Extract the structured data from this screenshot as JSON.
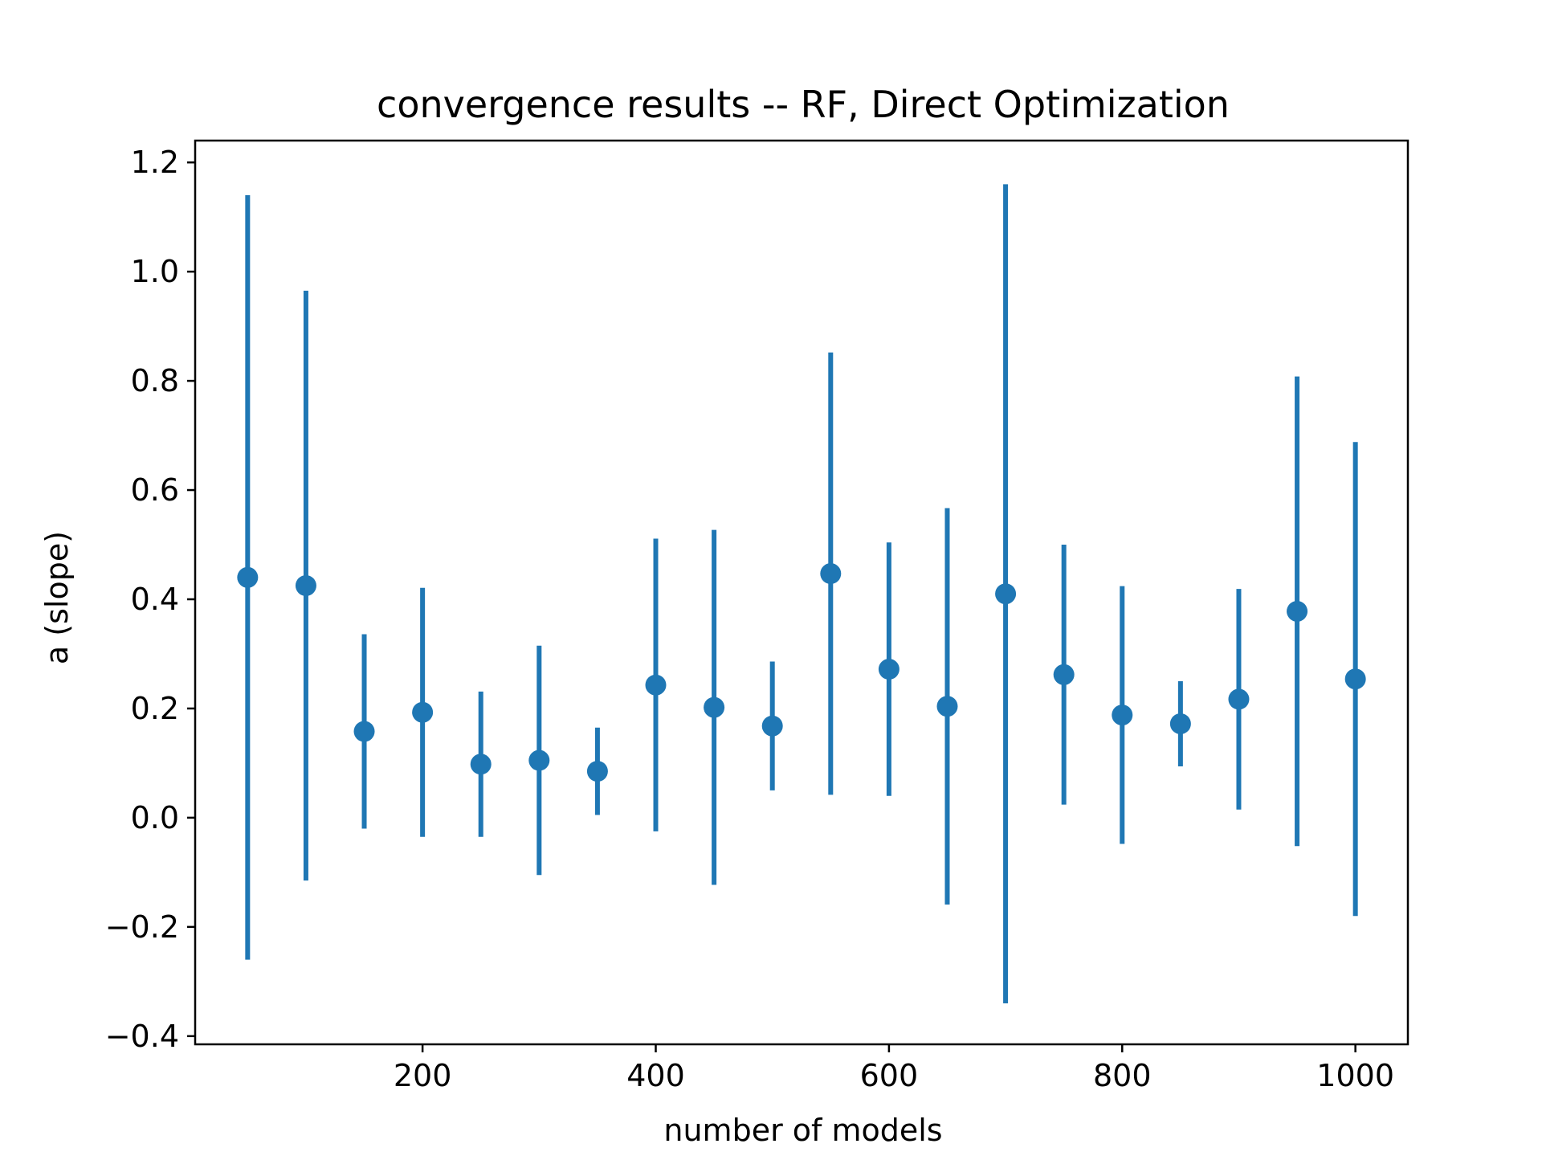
{
  "chart_data": {
    "type": "scatter",
    "title": "convergence results -- RF, Direct Optimization",
    "xlabel": "number of models",
    "ylabel": "a (slope)",
    "xlim": [
      5,
      1045
    ],
    "ylim": [
      -0.415,
      1.24
    ],
    "x_ticks": [
      200,
      400,
      600,
      800,
      1000
    ],
    "x_tick_labels": [
      "200",
      "400",
      "600",
      "800",
      "1000"
    ],
    "y_ticks": [
      -0.4,
      -0.2,
      0.0,
      0.2,
      0.4,
      0.6,
      0.8,
      1.0,
      1.2
    ],
    "y_tick_labels": [
      "−0.4",
      "−0.2",
      "0.0",
      "0.2",
      "0.4",
      "0.6",
      "0.8",
      "1.0",
      "1.2"
    ],
    "grid": false,
    "series": [
      {
        "color": "#1f77b4",
        "marker": "circle",
        "error_bars": "vertical",
        "points": [
          {
            "x": 50,
            "y": 0.44,
            "err": 0.7
          },
          {
            "x": 100,
            "y": 0.425,
            "err": 0.54
          },
          {
            "x": 150,
            "y": 0.158,
            "err": 0.178
          },
          {
            "x": 200,
            "y": 0.193,
            "err": 0.228
          },
          {
            "x": 250,
            "y": 0.098,
            "err": 0.133
          },
          {
            "x": 300,
            "y": 0.105,
            "err": 0.21
          },
          {
            "x": 350,
            "y": 0.085,
            "err": 0.08
          },
          {
            "x": 400,
            "y": 0.243,
            "err": 0.268
          },
          {
            "x": 450,
            "y": 0.202,
            "err": 0.325
          },
          {
            "x": 500,
            "y": 0.168,
            "err": 0.118
          },
          {
            "x": 550,
            "y": 0.447,
            "err": 0.405
          },
          {
            "x": 600,
            "y": 0.272,
            "err": 0.232
          },
          {
            "x": 650,
            "y": 0.204,
            "err": 0.363
          },
          {
            "x": 700,
            "y": 0.41,
            "err": 0.75
          },
          {
            "x": 750,
            "y": 0.262,
            "err": 0.238
          },
          {
            "x": 800,
            "y": 0.188,
            "err": 0.236
          },
          {
            "x": 850,
            "y": 0.172,
            "err": 0.078
          },
          {
            "x": 900,
            "y": 0.217,
            "err": 0.202
          },
          {
            "x": 950,
            "y": 0.378,
            "err": 0.43
          },
          {
            "x": 1000,
            "y": 0.254,
            "err": 0.434
          }
        ]
      }
    ]
  }
}
